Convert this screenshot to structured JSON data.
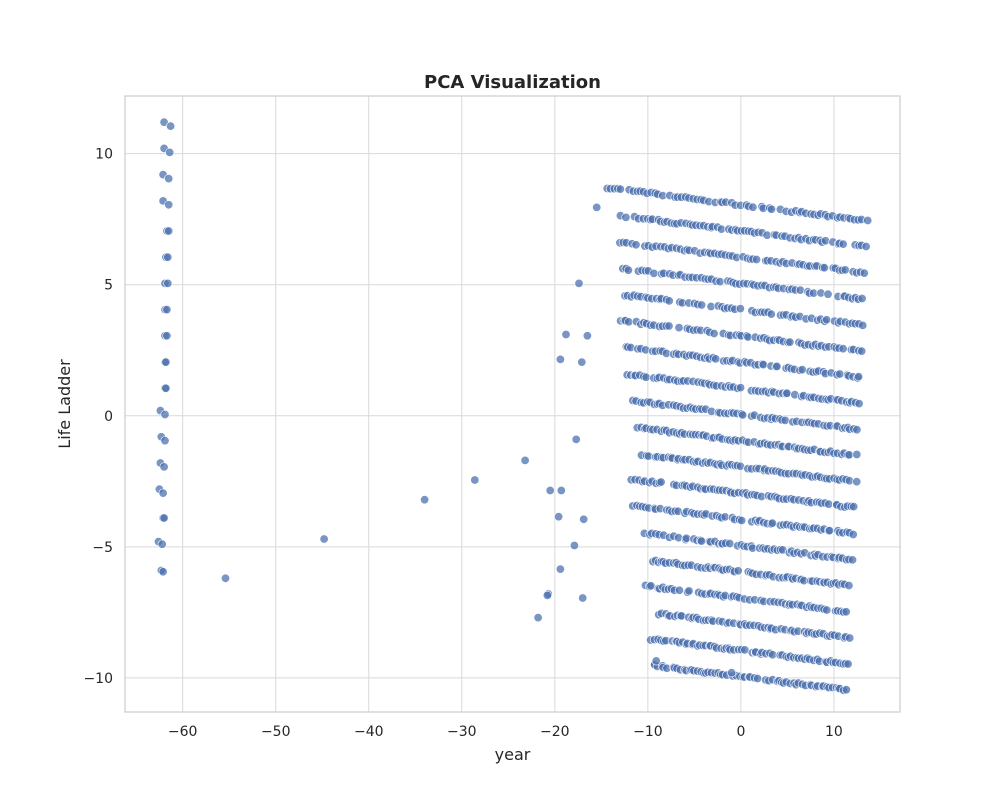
{
  "chart_data": {
    "type": "scatter",
    "title": "PCA Visualization",
    "xlabel": "year",
    "ylabel": "Life Ladder",
    "xlim": [
      -66.2,
      17.1
    ],
    "ylim": [
      -11.3,
      12.2
    ],
    "x_ticks": [
      -60,
      -50,
      -40,
      -30,
      -20,
      -10,
      0,
      10
    ],
    "y_ticks": [
      -10,
      -5,
      0,
      5,
      10
    ],
    "grid": true,
    "legend": "none",
    "marker_color": "#4c72b0",
    "marker_opacity": 0.75,
    "series": [
      {
        "generator": "banded-grid",
        "x_range": [
          -14.5,
          13.5
        ],
        "bands": 19,
        "band_top_left_y": 8.7,
        "band_spacing": 1.0,
        "slope": -0.045,
        "points_per_band": 70
      },
      {
        "generator": "explicit",
        "points": [
          [
            -62.0,
            11.2
          ],
          [
            -61.3,
            11.05
          ],
          [
            -62.0,
            10.2
          ],
          [
            -61.4,
            10.05
          ],
          [
            -62.1,
            9.2
          ],
          [
            -61.5,
            9.05
          ],
          [
            -62.1,
            8.2
          ],
          [
            -61.5,
            8.05
          ],
          [
            -61.7,
            7.05
          ],
          [
            -61.5,
            7.05
          ],
          [
            -61.8,
            6.05
          ],
          [
            -61.6,
            6.05
          ],
          [
            -61.9,
            5.05
          ],
          [
            -61.6,
            5.05
          ],
          [
            -61.9,
            4.05
          ],
          [
            -61.7,
            4.05
          ],
          [
            -61.9,
            3.05
          ],
          [
            -61.7,
            3.05
          ],
          [
            -61.9,
            2.05
          ],
          [
            -61.8,
            2.05
          ],
          [
            -61.9,
            1.05
          ],
          [
            -61.8,
            1.05
          ],
          [
            -62.4,
            0.2
          ],
          [
            -61.9,
            0.05
          ],
          [
            -62.3,
            -0.8
          ],
          [
            -61.9,
            -0.95
          ],
          [
            -62.4,
            -1.8
          ],
          [
            -62.0,
            -1.95
          ],
          [
            -62.5,
            -2.8
          ],
          [
            -62.1,
            -2.95
          ],
          [
            -62.1,
            -3.9
          ],
          [
            -62.0,
            -3.9
          ],
          [
            -62.6,
            -4.8
          ],
          [
            -62.2,
            -4.9
          ],
          [
            -62.3,
            -5.9
          ],
          [
            -62.1,
            -5.95
          ],
          [
            -55.4,
            -6.2
          ],
          [
            -44.8,
            -4.7
          ],
          [
            -34.0,
            -3.2
          ],
          [
            -28.6,
            -2.45
          ],
          [
            -23.2,
            -1.7
          ],
          [
            -20.5,
            -2.85
          ],
          [
            -19.3,
            -2.85
          ],
          [
            -19.6,
            -3.85
          ],
          [
            -19.4,
            -5.85
          ],
          [
            -20.7,
            -6.8
          ],
          [
            -20.8,
            -6.85
          ],
          [
            -21.8,
            -7.7
          ],
          [
            -17.9,
            -4.95
          ],
          [
            -17.7,
            -0.9
          ],
          [
            -17.1,
            2.05
          ],
          [
            -19.4,
            2.15
          ],
          [
            -18.8,
            3.1
          ],
          [
            -16.5,
            3.05
          ],
          [
            -17.4,
            5.05
          ],
          [
            -15.5,
            7.95
          ],
          [
            -16.9,
            -3.95
          ],
          [
            -17.0,
            -6.95
          ],
          [
            -9.1,
            -9.35
          ],
          [
            -1.0,
            -9.8
          ]
        ]
      }
    ]
  }
}
